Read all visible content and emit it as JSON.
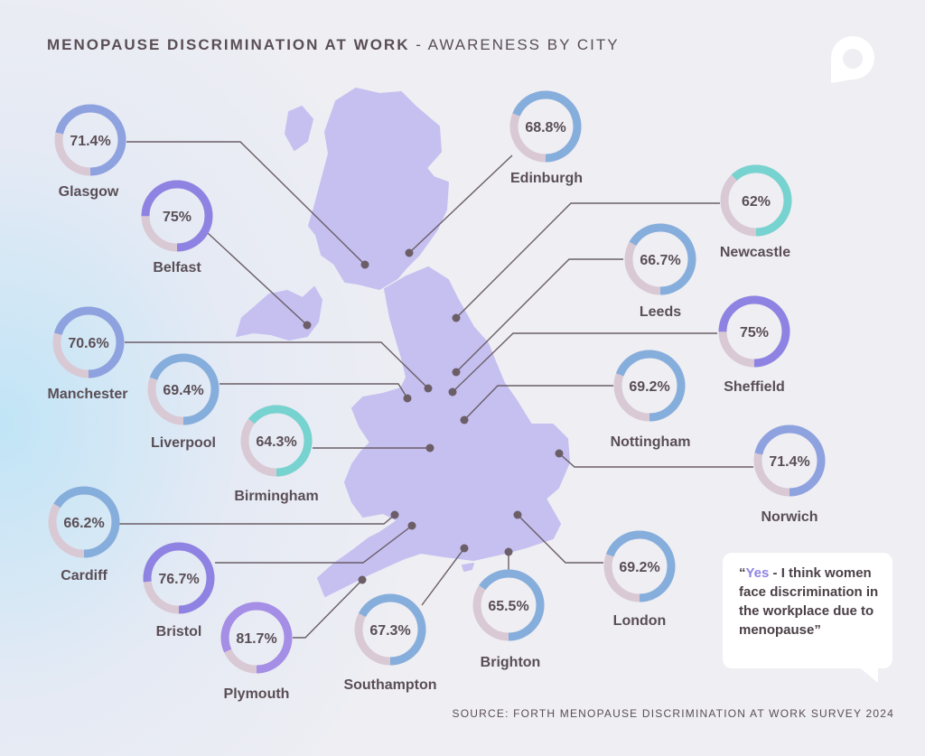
{
  "title": {
    "bold": "MENOPAUSE DISCRIMINATION AT WORK",
    "rest": " - AWARENESS BY CITY"
  },
  "quote": {
    "open": "“",
    "highlight": "Yes",
    "text": " - I think women face discrimination in the workplace due to menopause”"
  },
  "source": "SOURCE: FORTH MENOPAUSE DISCRIMINATION AT WORK SURVEY 2024",
  "icons": {
    "logo": "speech-bubble-logo-icon"
  },
  "colors": {
    "track": "#d9c9d4",
    "purple": "#8e83e2",
    "blue": "#86aedc",
    "teal": "#77d3cf",
    "map": "#c5c0f0",
    "text": "#5a4e56"
  },
  "chart_data": {
    "type": "donut-map",
    "unit": "%",
    "cities": [
      {
        "name": "Glasgow",
        "value": 71.4,
        "label": "71.4%",
        "color": "#8ea2e0"
      },
      {
        "name": "Edinburgh",
        "value": 68.8,
        "label": "68.8%",
        "color": "#86aedc"
      },
      {
        "name": "Belfast",
        "value": 75,
        "label": "75%",
        "color": "#8e83e2"
      },
      {
        "name": "Newcastle",
        "value": 62,
        "label": "62%",
        "color": "#77d3cf"
      },
      {
        "name": "Leeds",
        "value": 66.7,
        "label": "66.7%",
        "color": "#86aedc"
      },
      {
        "name": "Manchester",
        "value": 70.6,
        "label": "70.6%",
        "color": "#8ea2e0"
      },
      {
        "name": "Sheffield",
        "value": 75,
        "label": "75%",
        "color": "#8e83e2"
      },
      {
        "name": "Liverpool",
        "value": 69.4,
        "label": "69.4%",
        "color": "#86aedc"
      },
      {
        "name": "Nottingham",
        "value": 69.2,
        "label": "69.2%",
        "color": "#86aedc"
      },
      {
        "name": "Birmingham",
        "value": 64.3,
        "label": "64.3%",
        "color": "#77d3cf"
      },
      {
        "name": "Norwich",
        "value": 71.4,
        "label": "71.4%",
        "color": "#8ea2e0"
      },
      {
        "name": "Cardiff",
        "value": 66.2,
        "label": "66.2%",
        "color": "#86aedc"
      },
      {
        "name": "Bristol",
        "value": 76.7,
        "label": "76.7%",
        "color": "#8e83e2"
      },
      {
        "name": "London",
        "value": 69.2,
        "label": "69.2%",
        "color": "#86aedc"
      },
      {
        "name": "Plymouth",
        "value": 81.7,
        "label": "81.7%",
        "color": "#a48ee6"
      },
      {
        "name": "Southampton",
        "value": 67.3,
        "label": "67.3%",
        "color": "#86aedc"
      },
      {
        "name": "Brighton",
        "value": 65.5,
        "label": "65.5%",
        "color": "#86aedc"
      }
    ]
  }
}
